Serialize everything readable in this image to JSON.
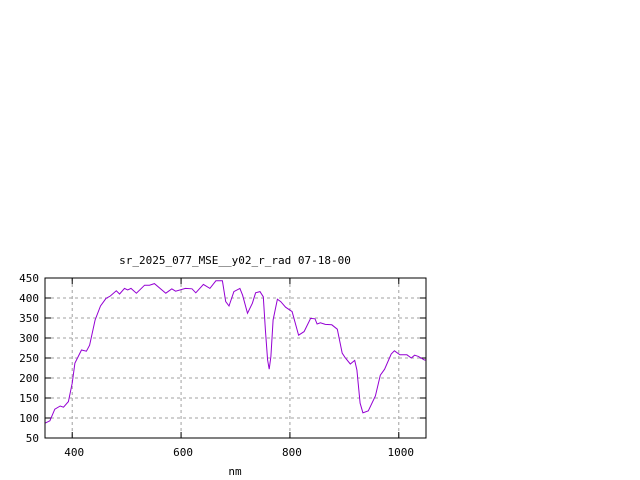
{
  "chart_data": {
    "type": "line",
    "title": "sr_2025_077_MSE__y02_r_rad 07-18-00",
    "xlabel": "nm",
    "ylabel": "",
    "xlim": [
      350,
      1050
    ],
    "ylim": [
      50,
      450
    ],
    "xticks": [
      400,
      600,
      800,
      1000
    ],
    "yticks": [
      50,
      100,
      150,
      200,
      250,
      300,
      350,
      400,
      450
    ],
    "grid": true,
    "line_color": "#9400d3",
    "series": [
      {
        "x": [
          350,
          359,
          368,
          378,
          384,
          393,
          400,
          405,
          417,
          426,
          432,
          442,
          452,
          462,
          470,
          481,
          487,
          496,
          502,
          508,
          518,
          533,
          542,
          551,
          572,
          583,
          590,
          608,
          620,
          627,
          641,
          653,
          664,
          676,
          682,
          688,
          697,
          708,
          713,
          722,
          731,
          737,
          745,
          751,
          755,
          759,
          762,
          765,
          769,
          777,
          783,
          792,
          804,
          816,
          826,
          838,
          846,
          850,
          856,
          865,
          877,
          887,
          896,
          902,
          911,
          919,
          923,
          929,
          934,
          944,
          957,
          966,
          974,
          986,
          992,
          1002,
          1015,
          1023,
          1029,
          1036,
          1047,
          1050
        ],
        "y": [
          87,
          93,
          122,
          130,
          127,
          141,
          187,
          237,
          270,
          267,
          282,
          345,
          380,
          399,
          405,
          418,
          410,
          424,
          420,
          424,
          412,
          432,
          432,
          436,
          412,
          423,
          417,
          424,
          423,
          413,
          434,
          424,
          443,
          443,
          391,
          380,
          416,
          424,
          407,
          362,
          387,
          413,
          416,
          403,
          320,
          245,
          222,
          254,
          345,
          397,
          391,
          377,
          366,
          307,
          316,
          349,
          348,
          335,
          338,
          334,
          333,
          322,
          262,
          250,
          235,
          244,
          220,
          137,
          113,
          118,
          155,
          207,
          222,
          260,
          268,
          258,
          258,
          250,
          257,
          254,
          245,
          245
        ]
      }
    ]
  }
}
